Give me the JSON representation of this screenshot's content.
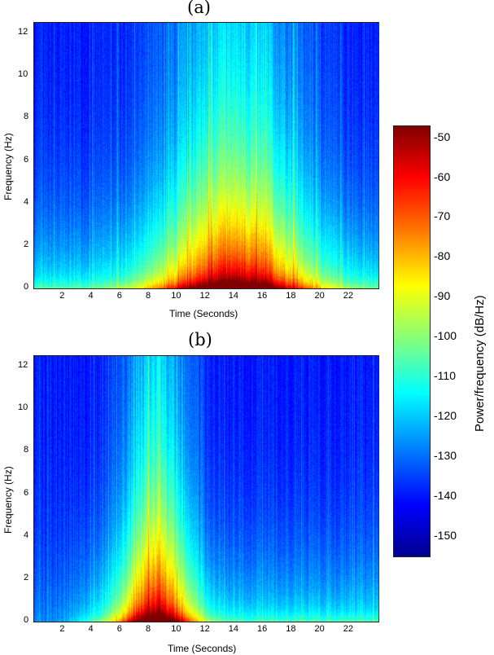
{
  "chart_data": [
    {
      "type": "heatmap",
      "panel": "(a)",
      "xlabel": "Time (Seconds)",
      "ylabel": "Frequency (Hz)",
      "xlim": [
        0,
        24
      ],
      "ylim": [
        0,
        12.5
      ],
      "xticks": [
        "2",
        "4",
        "6",
        "8",
        "10",
        "12",
        "14",
        "16",
        "18",
        "20",
        "22"
      ],
      "yticks": [
        "0",
        "2",
        "4",
        "6",
        "8",
        "10",
        "12"
      ],
      "peak_time": 14,
      "spread_s": 5.5,
      "onset_s": 0
    },
    {
      "type": "heatmap",
      "panel": "(b)",
      "xlabel": "Time (Seconds)",
      "ylabel": "Frequency (Hz)",
      "xlim": [
        0,
        24
      ],
      "ylim": [
        0,
        12.5
      ],
      "xticks": [
        "2",
        "4",
        "6",
        "8",
        "10",
        "12",
        "14",
        "16",
        "18",
        "20",
        "22"
      ],
      "yticks": [
        "0",
        "2",
        "4",
        "6",
        "8",
        "10",
        "12"
      ],
      "peak_time": 8.5,
      "spread_s": 2.6,
      "onset_s": 3
    }
  ],
  "colorbar": {
    "label": "Power/frequency (dB/Hz)",
    "range": [
      -155,
      -47
    ],
    "ticks": [
      "-50",
      "-60",
      "-70",
      "-80",
      "-90",
      "-100",
      "-110",
      "-120",
      "-130",
      "-140",
      "-150"
    ]
  }
}
